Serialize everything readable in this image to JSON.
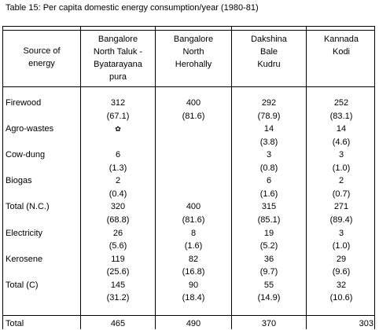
{
  "caption": "Table  15:  Per capita domestic energy consumption/year (1980-81)",
  "headers": {
    "source": [
      "Source of",
      "energy"
    ],
    "columns": [
      [
        "Bangalore",
        "North Taluk -",
        "Byatarayana",
        "pura"
      ],
      [
        "Bangalore",
        "North",
        "Herohally"
      ],
      [
        "Dakshina",
        "Bale",
        "Kudru"
      ],
      [
        "Kannada",
        "Kodi"
      ]
    ]
  },
  "rows": [
    {
      "label": "Firewood",
      "values": [
        "312",
        "400",
        "292",
        "252"
      ],
      "percents": [
        "(67.1)",
        "(81.6)",
        "(78.9)",
        "(83.1)"
      ]
    },
    {
      "label": "Agro-wastes",
      "values": [
        "✿",
        "",
        "14",
        "14"
      ],
      "percents": [
        "",
        "",
        "(3.8)",
        "(4.6)"
      ]
    },
    {
      "label": "Cow-dung",
      "values": [
        "6",
        "",
        "3",
        "3"
      ],
      "percents": [
        "(1.3)",
        "",
        "(0.8)",
        "(1.0)"
      ]
    },
    {
      "label": "Biogas",
      "values": [
        "2",
        "",
        "6",
        "2"
      ],
      "percents": [
        "(0.4)",
        "",
        "(1.6)",
        "(0.7)"
      ]
    },
    {
      "label": "Total (N.C.)",
      "values": [
        "320",
        "400",
        "315",
        "271"
      ],
      "percents": [
        "(68.8)",
        "(81.6)",
        "(85.1)",
        "(89.4)"
      ]
    },
    {
      "label": "Electricity",
      "values": [
        "26",
        "8",
        "19",
        "3"
      ],
      "percents": [
        "(5.6)",
        "(1.6)",
        "(5.2)",
        "(1.0)"
      ]
    },
    {
      "label": "Kerosene",
      "values": [
        "119",
        "82",
        "36",
        "29"
      ],
      "percents": [
        "(25.6)",
        "(16.8)",
        "(9.7)",
        "(9.6)"
      ]
    },
    {
      "label": "Total (C)",
      "values": [
        "145",
        "90",
        "55",
        "32"
      ],
      "percents": [
        "(31.2)",
        "(18.4)",
        "(14.9)",
        "(10.6)"
      ]
    }
  ],
  "total": {
    "label": "Total",
    "values": [
      "465",
      "490",
      "370",
      "303"
    ]
  }
}
